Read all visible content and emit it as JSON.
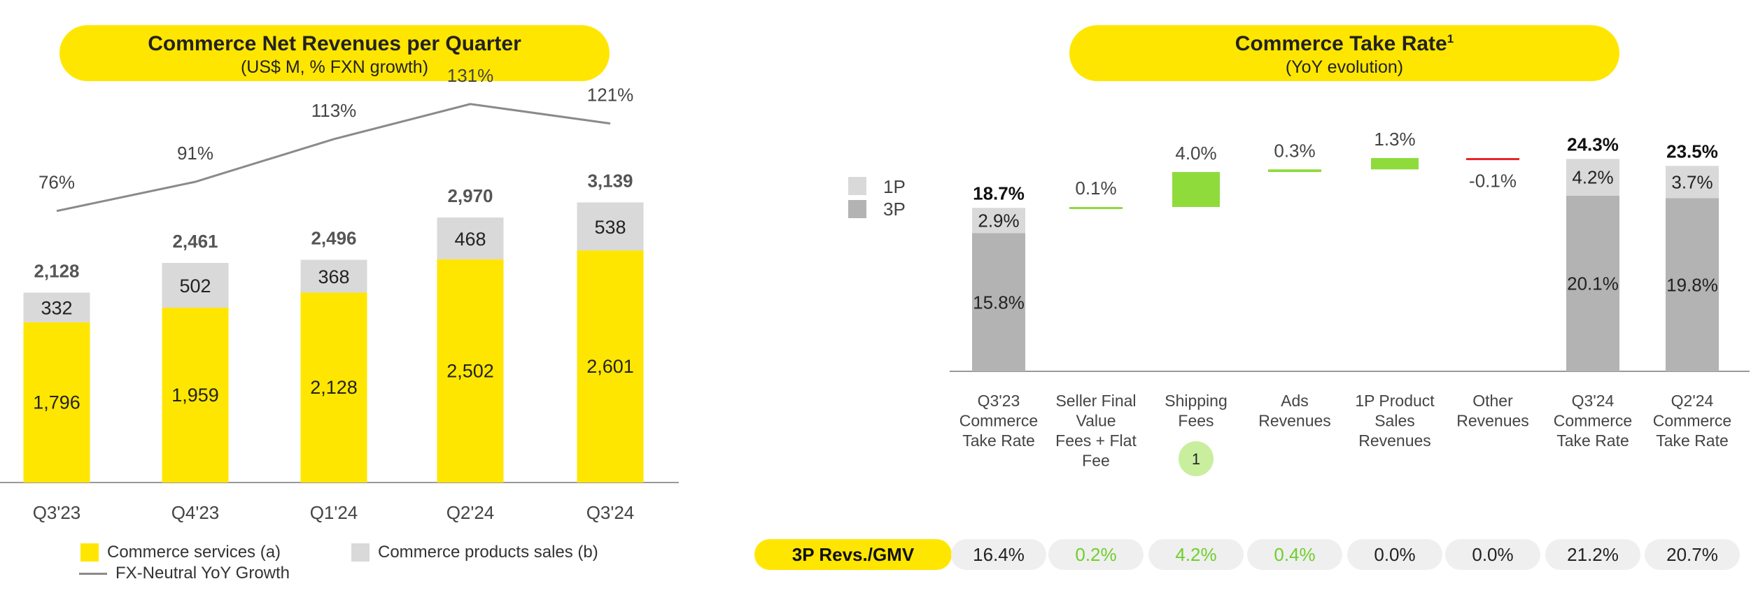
{
  "left": {
    "title": "Commerce Net Revenues per Quarter",
    "subtitle": "(US$ M, % FXN growth)",
    "legend": {
      "services": "Commerce services (a)",
      "products": "Commerce products sales (b)",
      "growth": "FX-Neutral YoY Growth"
    }
  },
  "right": {
    "title": "Commerce Take Rate",
    "title_sup": "1",
    "subtitle": "(YoY evolution)",
    "legend": {
      "first_party": "1P",
      "third_party": "3P"
    },
    "footnote_marker": "1",
    "table_label": "3P Revs./GMV",
    "table_values": [
      "16.4%",
      "0.2%",
      "4.2%",
      "0.4%",
      "0.0%",
      "0.0%",
      "21.2%",
      "20.7%"
    ]
  },
  "colors": {
    "yellow": "#ffe600",
    "light_gray": "#d9d9d9",
    "mid_gray": "#b3b3b3",
    "green": "#8fdb3c",
    "red": "#e8262a",
    "line_gray": "#8a8a8a"
  },
  "chart_data": [
    {
      "type": "bar",
      "stacked": true,
      "title": "Commerce Net Revenues per Quarter",
      "subtitle": "(US$ M, % FXN growth)",
      "categories": [
        "Q3'23",
        "Q4'23",
        "Q1'24",
        "Q2'24",
        "Q3'24"
      ],
      "series": [
        {
          "name": "Commerce services (a)",
          "color": "#ffe600",
          "values": [
            1796,
            1959,
            2128,
            2502,
            2601
          ],
          "labels": [
            "1,796",
            "1,959",
            "2,128",
            "2,502",
            "2,601"
          ]
        },
        {
          "name": "Commerce products sales (b)",
          "color": "#d9d9d9",
          "values": [
            332,
            502,
            368,
            468,
            538
          ],
          "labels": [
            "332",
            "502",
            "368",
            "468",
            "538"
          ]
        }
      ],
      "totals": [
        2128,
        2461,
        2496,
        2970,
        3139
      ],
      "total_labels": [
        "2,128",
        "2,461",
        "2,496",
        "2,970",
        "3,139"
      ],
      "line_series": {
        "name": "FX-Neutral YoY Growth",
        "values": [
          76,
          91,
          113,
          131,
          121
        ],
        "labels": [
          "76%",
          "91%",
          "113%",
          "131%",
          "121%"
        ]
      },
      "ylim": [
        0,
        3300
      ]
    },
    {
      "type": "bar",
      "waterfall": true,
      "title": "Commerce Take Rate",
      "subtitle": "(YoY evolution)",
      "categories": [
        [
          "Q3'23",
          "Commerce",
          "Take Rate"
        ],
        [
          "Seller Final",
          "Value",
          "Fees + Flat",
          "Fee"
        ],
        [
          "Shipping",
          "Fees"
        ],
        [
          "Ads",
          "Revenues"
        ],
        [
          "1P Product",
          "Sales",
          "Revenues"
        ],
        [
          "Other",
          "Revenues"
        ],
        [
          "Q3'24",
          "Commerce",
          "Take Rate"
        ],
        [
          "Q2'24",
          "Commerce",
          "Take Rate"
        ]
      ],
      "totals": [
        {
          "index": 0,
          "total": 18.7,
          "total_label": "18.7%",
          "third_party": 15.8,
          "third_party_label": "15.8%",
          "first_party": 2.9,
          "first_party_label": "2.9%"
        },
        {
          "index": 6,
          "total": 24.3,
          "total_label": "24.3%",
          "third_party": 20.1,
          "third_party_label": "20.1%",
          "first_party": 4.2,
          "first_party_label": "4.2%"
        },
        {
          "index": 7,
          "total": 23.5,
          "total_label": "23.5%",
          "third_party": 19.8,
          "third_party_label": "19.8%",
          "first_party": 3.7,
          "first_party_label": "3.7%"
        }
      ],
      "deltas": [
        {
          "index": 1,
          "value": 0.1,
          "label": "0.1%"
        },
        {
          "index": 2,
          "value": 4.0,
          "label": "4.0%"
        },
        {
          "index": 3,
          "value": 0.3,
          "label": "0.3%"
        },
        {
          "index": 4,
          "value": 1.3,
          "label": "1.3%"
        },
        {
          "index": 5,
          "value": -0.1,
          "label": "-0.1%"
        }
      ],
      "ylim": [
        0,
        27
      ]
    }
  ]
}
